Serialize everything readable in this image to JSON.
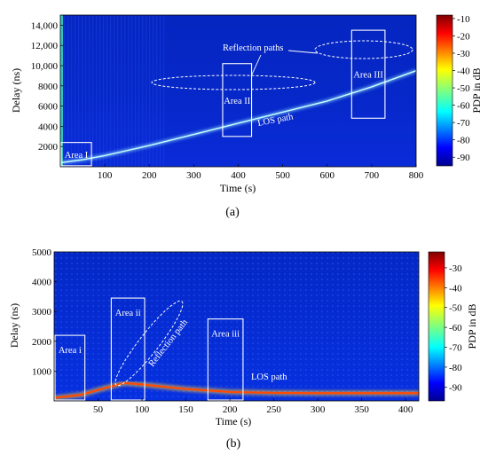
{
  "chart_data": [
    {
      "type": "heatmap",
      "panel_label": "(a)",
      "xlabel": "Time (s)",
      "ylabel": "Delay (ns)",
      "x_ticks": [
        "100",
        "200",
        "300",
        "400",
        "500",
        "600",
        "700",
        "800"
      ],
      "y_ticks": [
        "2000",
        "4000",
        "6000",
        "8000",
        "10,000",
        "12,000",
        "14,000"
      ],
      "xlim": [
        0,
        800
      ],
      "ylim": [
        0,
        15000
      ],
      "colorbar": {
        "label": "PDP in dB",
        "ticks": [
          "-10",
          "-20",
          "-30",
          "-40",
          "-50",
          "-60",
          "-70",
          "-80",
          "-90"
        ],
        "range": [
          -95,
          -8
        ]
      },
      "los_path": [
        [
          0,
          400
        ],
        [
          50,
          700
        ],
        [
          100,
          1100
        ],
        [
          200,
          2100
        ],
        [
          300,
          3200
        ],
        [
          400,
          4300
        ],
        [
          500,
          5400
        ],
        [
          600,
          6500
        ],
        [
          700,
          7900
        ],
        [
          800,
          9500
        ]
      ],
      "annotations": {
        "areas": [
          {
            "label": "Area I",
            "x": [
              0,
              70
            ],
            "y": [
              100,
              2400
            ]
          },
          {
            "label": "Area II",
            "x": [
              365,
              430
            ],
            "y": [
              3000,
              10200
            ]
          },
          {
            "label": "Area III",
            "x": [
              655,
              730
            ],
            "y": [
              4800,
              13500
            ]
          }
        ],
        "reflection_label": "Reflection paths",
        "los_label": "LOS path"
      }
    },
    {
      "type": "heatmap",
      "panel_label": "(b)",
      "xlabel": "Time (s)",
      "ylabel": "Delay (ns)",
      "x_ticks": [
        "50",
        "100",
        "150",
        "200",
        "250",
        "300",
        "350",
        "400"
      ],
      "y_ticks": [
        "1000",
        "2000",
        "3000",
        "4000",
        "5000"
      ],
      "xlim": [
        0,
        415
      ],
      "ylim": [
        0,
        5000
      ],
      "colorbar": {
        "label": "PDP in dB",
        "ticks": [
          "-30",
          "-40",
          "-50",
          "-60",
          "-70",
          "-80",
          "-90"
        ],
        "range": [
          -97,
          -22
        ]
      },
      "los_path": [
        [
          0,
          100
        ],
        [
          30,
          200
        ],
        [
          60,
          450
        ],
        [
          80,
          600
        ],
        [
          100,
          550
        ],
        [
          150,
          400
        ],
        [
          200,
          300
        ],
        [
          250,
          270
        ],
        [
          300,
          260
        ],
        [
          350,
          260
        ],
        [
          415,
          260
        ]
      ],
      "annotations": {
        "areas": [
          {
            "label": "Area i",
            "x": [
              0,
              35
            ],
            "y": [
              0,
              2200
            ]
          },
          {
            "label": "Area ii",
            "x": [
              65,
              103
            ],
            "y": [
              0,
              3450
            ]
          },
          {
            "label": "Area iii",
            "x": [
              175,
              215
            ],
            "y": [
              0,
              2750
            ]
          }
        ],
        "reflection_label": "Reflection path",
        "los_label": "LOS path"
      }
    }
  ]
}
